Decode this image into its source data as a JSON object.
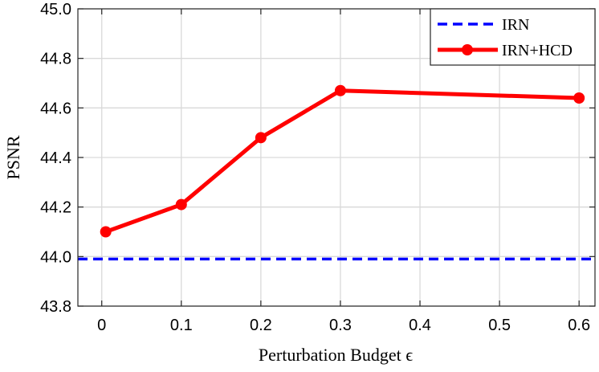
{
  "chart_data": {
    "type": "line",
    "xlabel": "Perturbation Budget ϵ",
    "ylabel": "PSNR",
    "xlim": [
      -0.03,
      0.62
    ],
    "ylim": [
      43.8,
      45.0
    ],
    "x_ticks": [
      0,
      0.1,
      0.2,
      0.3,
      0.4,
      0.5,
      0.6
    ],
    "x_tick_labels": [
      "0",
      "0.1",
      "0.2",
      "0.3",
      "0.4",
      "0.5",
      "0.6"
    ],
    "y_ticks": [
      43.8,
      44.0,
      44.2,
      44.4,
      44.6,
      44.8,
      45.0
    ],
    "y_tick_labels": [
      "43.8",
      "44.0",
      "44.2",
      "44.4",
      "44.6",
      "44.8",
      "45.0"
    ],
    "grid": true,
    "legend_position": "top-right",
    "series": [
      {
        "name": "IRN",
        "style": "dashed",
        "color": "#0000ff",
        "x": [
          -0.03,
          0.62
        ],
        "y": [
          43.99,
          43.99
        ]
      },
      {
        "name": "IRN+HCD",
        "style": "solid-markers",
        "color": "#ff0000",
        "x": [
          0.005,
          0.1,
          0.2,
          0.3,
          0.6
        ],
        "y": [
          44.1,
          44.21,
          44.48,
          44.67,
          44.64
        ]
      }
    ]
  }
}
